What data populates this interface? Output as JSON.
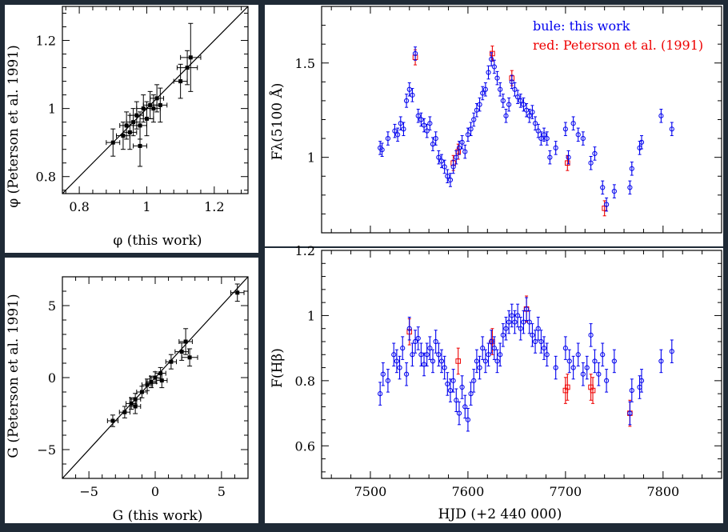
{
  "colors": {
    "background": "#1f2a36",
    "blue": "#0000ee",
    "red": "#ee0000",
    "ink": "#000000",
    "panel": "#ffffff"
  },
  "legend": {
    "blue_label": "bule: this work",
    "red_label": "red: Peterson et al. (1991)"
  },
  "chart_data": [
    {
      "id": "phi-compare",
      "type": "scatter",
      "xlabel": "φ (this work)",
      "ylabel": "φ (Peterson et al. 1991)",
      "xlim": [
        0.75,
        1.3
      ],
      "ylim": [
        0.75,
        1.3
      ],
      "xticks": [
        0.8,
        1,
        1.2
      ],
      "xtick_labels": [
        "0.8",
        "1",
        "1.2"
      ],
      "yticks": [
        0.8,
        1,
        1.2
      ],
      "ytick_labels": [
        "0.8",
        "1",
        "1.2"
      ],
      "reference_line": "y = x",
      "points": [
        {
          "x": 0.9,
          "y": 0.9,
          "xerr": 0.02,
          "yerr": 0.04
        },
        {
          "x": 0.93,
          "y": 0.92,
          "xerr": 0.02,
          "yerr": 0.04
        },
        {
          "x": 0.94,
          "y": 0.95,
          "xerr": 0.02,
          "yerr": 0.04
        },
        {
          "x": 0.95,
          "y": 0.93,
          "xerr": 0.02,
          "yerr": 0.05
        },
        {
          "x": 0.96,
          "y": 0.96,
          "xerr": 0.02,
          "yerr": 0.04
        },
        {
          "x": 0.97,
          "y": 0.98,
          "xerr": 0.02,
          "yerr": 0.04
        },
        {
          "x": 0.98,
          "y": 0.89,
          "xerr": 0.02,
          "yerr": 0.06
        },
        {
          "x": 0.98,
          "y": 0.95,
          "xerr": 0.02,
          "yerr": 0.04
        },
        {
          "x": 0.99,
          "y": 1.0,
          "xerr": 0.02,
          "yerr": 0.04
        },
        {
          "x": 1.0,
          "y": 0.97,
          "xerr": 0.02,
          "yerr": 0.05
        },
        {
          "x": 1.01,
          "y": 1.01,
          "xerr": 0.02,
          "yerr": 0.04
        },
        {
          "x": 1.02,
          "y": 1.0,
          "xerr": 0.02,
          "yerr": 0.04
        },
        {
          "x": 1.03,
          "y": 1.03,
          "xerr": 0.02,
          "yerr": 0.04
        },
        {
          "x": 1.04,
          "y": 1.01,
          "xerr": 0.02,
          "yerr": 0.05
        },
        {
          "x": 1.1,
          "y": 1.08,
          "xerr": 0.02,
          "yerr": 0.05
        },
        {
          "x": 1.12,
          "y": 1.12,
          "xerr": 0.03,
          "yerr": 0.05
        },
        {
          "x": 1.13,
          "y": 1.15,
          "xerr": 0.03,
          "yerr": 0.1
        }
      ]
    },
    {
      "id": "g-compare",
      "type": "scatter",
      "xlabel": "G (this work)",
      "ylabel": "G (Peterson et al. 1991)",
      "xlim": [
        -7,
        7
      ],
      "ylim": [
        -7,
        7
      ],
      "xticks": [
        -5,
        0,
        5
      ],
      "xtick_labels": [
        "−5",
        "0",
        "5"
      ],
      "yticks": [
        -5,
        0,
        5
      ],
      "ytick_labels": [
        "−5",
        "0",
        "5"
      ],
      "reference_line": "y = x",
      "points": [
        {
          "x": -3.2,
          "y": -3.0,
          "xerr": 0.4,
          "yerr": 0.4
        },
        {
          "x": -2.3,
          "y": -2.4,
          "xerr": 0.4,
          "yerr": 0.4
        },
        {
          "x": -1.8,
          "y": -1.8,
          "xerr": 0.4,
          "yerr": 0.4
        },
        {
          "x": -1.5,
          "y": -1.5,
          "xerr": 0.4,
          "yerr": 0.4
        },
        {
          "x": -1.5,
          "y": -2.0,
          "xerr": 0.4,
          "yerr": 0.5
        },
        {
          "x": -1.0,
          "y": -1.0,
          "xerr": 0.4,
          "yerr": 0.4
        },
        {
          "x": -0.6,
          "y": -0.5,
          "xerr": 0.4,
          "yerr": 0.4
        },
        {
          "x": -0.3,
          "y": -0.3,
          "xerr": 0.4,
          "yerr": 0.4
        },
        {
          "x": 0.0,
          "y": 0.0,
          "xerr": 0.4,
          "yerr": 0.4
        },
        {
          "x": 0.4,
          "y": 0.3,
          "xerr": 0.4,
          "yerr": 0.4
        },
        {
          "x": 0.5,
          "y": -0.2,
          "xerr": 0.4,
          "yerr": 0.5
        },
        {
          "x": 1.2,
          "y": 1.1,
          "xerr": 0.4,
          "yerr": 0.5
        },
        {
          "x": 2.0,
          "y": 1.8,
          "xerr": 0.5,
          "yerr": 0.6
        },
        {
          "x": 2.3,
          "y": 2.5,
          "xerr": 0.5,
          "yerr": 0.9
        },
        {
          "x": 2.6,
          "y": 1.4,
          "xerr": 0.6,
          "yerr": 0.6
        },
        {
          "x": 6.2,
          "y": 5.9,
          "xerr": 0.5,
          "yerr": 0.6
        }
      ]
    },
    {
      "id": "continuum-lightcurve",
      "type": "scatter",
      "xlabel": "",
      "ylabel": "Fλ(5100 Å)",
      "xlim": [
        7450,
        7860
      ],
      "ylim": [
        0.6,
        1.8
      ],
      "xticks": [
        7500,
        7600,
        7700,
        7800
      ],
      "xtick_labels": [
        "",
        "",
        "",
        ""
      ],
      "yticks": [
        1.0,
        1.5
      ],
      "ytick_labels": [
        "1",
        "1.5"
      ],
      "series": [
        {
          "name": "bule: this work",
          "color": "#0000ee",
          "err": 0.035,
          "x": [
            7510,
            7512,
            7518,
            7525,
            7528,
            7531,
            7534,
            7537,
            7540,
            7543,
            7546,
            7549,
            7552,
            7555,
            7558,
            7561,
            7564,
            7567,
            7570,
            7573,
            7576,
            7579,
            7582,
            7585,
            7588,
            7591,
            7594,
            7597,
            7600,
            7603,
            7606,
            7609,
            7612,
            7615,
            7618,
            7621,
            7624,
            7627,
            7630,
            7633,
            7636,
            7639,
            7642,
            7645,
            7648,
            7651,
            7654,
            7657,
            7660,
            7663,
            7666,
            7669,
            7672,
            7675,
            7678,
            7681,
            7684,
            7690,
            7700,
            7703,
            7708,
            7713,
            7718,
            7726,
            7730,
            7738,
            7742,
            7750,
            7766,
            7768,
            7776,
            7778,
            7798,
            7809
          ],
          "y": [
            1.05,
            1.04,
            1.1,
            1.14,
            1.12,
            1.18,
            1.15,
            1.3,
            1.36,
            1.33,
            1.55,
            1.22,
            1.2,
            1.17,
            1.14,
            1.18,
            1.07,
            1.1,
            1.0,
            0.98,
            0.95,
            0.9,
            0.88,
            0.95,
            1.0,
            1.05,
            1.08,
            1.03,
            1.12,
            1.15,
            1.2,
            1.25,
            1.28,
            1.34,
            1.36,
            1.45,
            1.52,
            1.48,
            1.42,
            1.36,
            1.3,
            1.22,
            1.28,
            1.4,
            1.36,
            1.32,
            1.3,
            1.28,
            1.25,
            1.22,
            1.24,
            1.18,
            1.14,
            1.1,
            1.12,
            1.1,
            1.0,
            1.05,
            1.15,
            1.0,
            1.18,
            1.12,
            1.1,
            0.97,
            1.02,
            0.84,
            0.75,
            0.82,
            0.84,
            0.94,
            1.05,
            1.08,
            1.22,
            1.15
          ]
        },
        {
          "name": "red: Peterson et al. (1991)",
          "color": "#ee0000",
          "err": 0.04,
          "x": [
            7546,
            7585,
            7590,
            7625,
            7645,
            7702,
            7740
          ],
          "y": [
            1.53,
            0.97,
            1.03,
            1.55,
            1.42,
            0.97,
            0.73
          ]
        }
      ]
    },
    {
      "id": "hbeta-lightcurve",
      "type": "scatter",
      "xlabel": "HJD (+2 440 000)",
      "ylabel": "F(Hβ)",
      "xlim": [
        7450,
        7860
      ],
      "ylim": [
        0.5,
        1.2
      ],
      "xticks": [
        7500,
        7600,
        7700,
        7800
      ],
      "xtick_labels": [
        "7500",
        "7600",
        "7700",
        "7800"
      ],
      "yticks": [
        0.6,
        0.8,
        1.0,
        1.2
      ],
      "ytick_labels": [
        "0.6",
        "0.8",
        "1",
        "1.2"
      ],
      "series": [
        {
          "name": "bule: this work",
          "color": "#0000ee",
          "err": 0.035,
          "x": [
            7510,
            7513,
            7518,
            7524,
            7527,
            7530,
            7533,
            7537,
            7540,
            7543,
            7546,
            7549,
            7552,
            7555,
            7558,
            7561,
            7564,
            7567,
            7570,
            7573,
            7576,
            7579,
            7582,
            7585,
            7588,
            7591,
            7594,
            7597,
            7600,
            7603,
            7606,
            7609,
            7612,
            7615,
            7618,
            7621,
            7624,
            7627,
            7630,
            7633,
            7636,
            7639,
            7642,
            7645,
            7648,
            7651,
            7654,
            7657,
            7660,
            7663,
            7666,
            7669,
            7672,
            7675,
            7678,
            7681,
            7690,
            7700,
            7704,
            7708,
            7713,
            7718,
            7722,
            7726,
            7730,
            7734,
            7738,
            7742,
            7750,
            7766,
            7768,
            7776,
            7778,
            7798,
            7809
          ],
          "y": [
            0.76,
            0.82,
            0.8,
            0.88,
            0.86,
            0.84,
            0.9,
            0.82,
            0.96,
            0.88,
            0.92,
            0.93,
            0.88,
            0.85,
            0.88,
            0.9,
            0.86,
            0.92,
            0.88,
            0.86,
            0.84,
            0.79,
            0.77,
            0.8,
            0.74,
            0.7,
            0.78,
            0.72,
            0.68,
            0.76,
            0.8,
            0.86,
            0.84,
            0.9,
            0.86,
            0.88,
            0.92,
            0.9,
            0.86,
            0.88,
            0.94,
            0.96,
            0.98,
            1.0,
            0.98,
            1.0,
            0.96,
            0.98,
            1.02,
            0.98,
            0.94,
            0.92,
            0.96,
            0.92,
            0.9,
            0.88,
            0.84,
            0.9,
            0.86,
            0.84,
            0.88,
            0.82,
            0.84,
            0.94,
            0.86,
            0.82,
            0.88,
            0.8,
            0.86,
            0.7,
            0.77,
            0.78,
            0.8,
            0.86,
            0.89
          ]
        },
        {
          "name": "red: Peterson et al. (1991)",
          "color": "#ee0000",
          "err": 0.04,
          "x": [
            7540,
            7590,
            7625,
            7660,
            7700,
            7702,
            7726,
            7728,
            7766
          ],
          "y": [
            0.95,
            0.86,
            0.92,
            1.02,
            0.77,
            0.78,
            0.78,
            0.77,
            0.7
          ]
        }
      ]
    }
  ]
}
